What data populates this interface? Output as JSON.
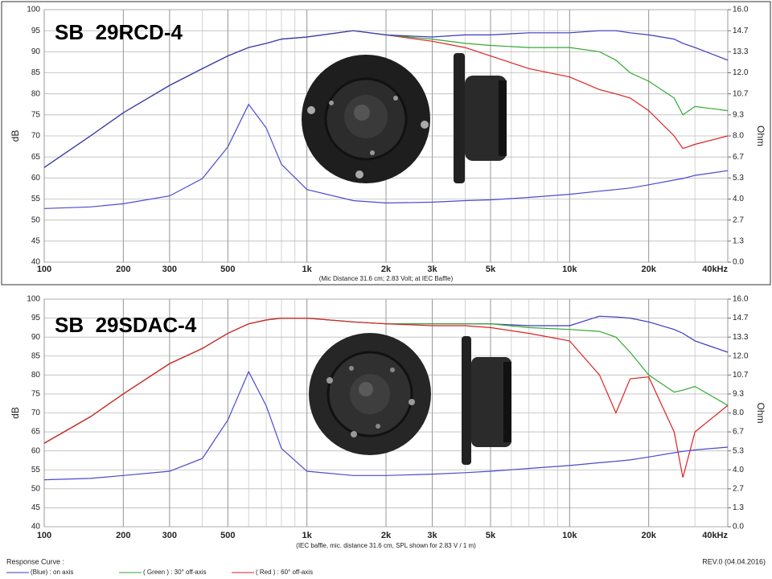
{
  "chart_data": [
    {
      "type": "line",
      "title": "SB  29RCD-4",
      "xlabel": "(Mic Distance 31.6 cm; 2.83 Volt; at IEC Baffle)",
      "ylabel": "dB",
      "y2label": "Ohm",
      "xscale": "log",
      "grid": true,
      "x": [
        100,
        150,
        200,
        300,
        400,
        500,
        600,
        700,
        800,
        1000,
        1500,
        2000,
        3000,
        4000,
        5000,
        7000,
        10000,
        13000,
        15000,
        17000,
        20000,
        25000,
        27000,
        30000,
        40000
      ],
      "xlim": [
        100,
        40000
      ],
      "xticks": [
        100,
        200,
        300,
        500,
        {
          "value": 1000,
          "label": "1k"
        },
        {
          "value": 2000,
          "label": "2k"
        },
        {
          "value": 3000,
          "label": "3k"
        },
        {
          "value": 5000,
          "label": "5k"
        },
        {
          "value": 10000,
          "label": "10k"
        },
        {
          "value": 20000,
          "label": "20k"
        },
        {
          "value": 40000,
          "label": "40kHz"
        }
      ],
      "ylim": [
        40,
        100
      ],
      "yticks": [
        40,
        45,
        50,
        55,
        60,
        65,
        70,
        75,
        80,
        85,
        90,
        95,
        100
      ],
      "y2lim": [
        0,
        16
      ],
      "y2ticks": [
        {
          "value": 0,
          "label": "0.0"
        },
        {
          "value": 1.333,
          "label": "1.3"
        },
        {
          "value": 2.667,
          "label": "2.7"
        },
        {
          "value": 4,
          "label": "4.0"
        },
        {
          "value": 5.333,
          "label": "5.3"
        },
        {
          "value": 6.667,
          "label": "6.7"
        },
        {
          "value": 8,
          "label": "8.0"
        },
        {
          "value": 9.333,
          "label": "9.3"
        },
        {
          "value": 10.667,
          "label": "10.7"
        },
        {
          "value": 12,
          "label": "12.0"
        },
        {
          "value": 13.333,
          "label": "13.3"
        },
        {
          "value": 14.667,
          "label": "14.7"
        },
        {
          "value": 16,
          "label": "16.0"
        }
      ],
      "series": [
        {
          "color": "#dd2222",
          "values": [
            62.5,
            70,
            75.5,
            82,
            86,
            89,
            91,
            92,
            93,
            93.5,
            95,
            94,
            92.5,
            91,
            89,
            86,
            84,
            81,
            80,
            79,
            76,
            70,
            67,
            68,
            70
          ]
        },
        {
          "color": "#33aa33",
          "values": [
            62.5,
            70,
            75.5,
            82,
            86,
            89,
            91,
            92,
            93,
            93.5,
            95,
            94,
            93,
            92,
            91.5,
            91,
            91,
            90,
            88,
            85,
            83,
            79,
            75,
            77,
            76
          ]
        },
        {
          "color": "#3a3ac0",
          "values": [
            62.5,
            70,
            75.5,
            82,
            86,
            89,
            91,
            92,
            93,
            93.5,
            95,
            94,
            93.5,
            94,
            94,
            94.5,
            94.5,
            95,
            95,
            94.5,
            94,
            93,
            92,
            91,
            88
          ]
        },
        {
          "color": "#4a4ad0",
          "axis": "y2",
          "values": [
            3.4,
            3.5,
            3.7,
            4.2,
            5.3,
            7.3,
            10.0,
            8.5,
            6.2,
            4.6,
            3.9,
            3.75,
            3.8,
            3.9,
            3.95,
            4.1,
            4.3,
            4.5,
            4.6,
            4.7,
            4.9,
            5.2,
            5.3,
            5.5,
            5.8
          ]
        }
      ]
    },
    {
      "type": "line",
      "title": "SB  29SDAC-4",
      "xlabel": "(IEC baffle, mic. distance 31.6 cm, SPL shown for 2.83 V / 1 m)",
      "ylabel": "dB",
      "y2label": "Ohm",
      "xscale": "log",
      "grid": true,
      "x": [
        100,
        150,
        200,
        300,
        400,
        500,
        600,
        700,
        800,
        1000,
        1500,
        2000,
        3000,
        4000,
        5000,
        7000,
        10000,
        13000,
        15000,
        17000,
        20000,
        25000,
        27000,
        30000,
        40000
      ],
      "xlim": [
        100,
        40000
      ],
      "xticks": [
        100,
        200,
        300,
        500,
        {
          "value": 1000,
          "label": "1k"
        },
        {
          "value": 2000,
          "label": "2k"
        },
        {
          "value": 3000,
          "label": "3k"
        },
        {
          "value": 5000,
          "label": "5k"
        },
        {
          "value": 10000,
          "label": "10k"
        },
        {
          "value": 20000,
          "label": "20k"
        },
        {
          "value": 40000,
          "label": "40kHz"
        }
      ],
      "ylim": [
        40,
        100
      ],
      "yticks": [
        40,
        45,
        50,
        55,
        60,
        65,
        70,
        75,
        80,
        85,
        90,
        95,
        100
      ],
      "y2lim": [
        0,
        16
      ],
      "y2ticks": [
        {
          "value": 0,
          "label": "0.0"
        },
        {
          "value": 1.333,
          "label": "1.3"
        },
        {
          "value": 2.667,
          "label": "2.7"
        },
        {
          "value": 4,
          "label": "4.0"
        },
        {
          "value": 5.333,
          "label": "5.3"
        },
        {
          "value": 6.667,
          "label": "6.7"
        },
        {
          "value": 8,
          "label": "8.0"
        },
        {
          "value": 9.333,
          "label": "9.3"
        },
        {
          "value": 10.667,
          "label": "10.7"
        },
        {
          "value": 12,
          "label": "12.0"
        },
        {
          "value": 13.333,
          "label": "13.3"
        },
        {
          "value": 14.667,
          "label": "14.7"
        },
        {
          "value": 16,
          "label": "16.0"
        }
      ],
      "legend_title": "Response Curve :",
      "note": "REV.0 (04.04.2016)",
      "series": [
        {
          "name": "(Blue) : on axis",
          "color": "#3a3ac0",
          "values": [
            62,
            69,
            75,
            83,
            87,
            91,
            93.5,
            94.5,
            95,
            95,
            94,
            93.5,
            93.5,
            93.5,
            93.5,
            93,
            93,
            95.5,
            95.3,
            95,
            94,
            92,
            91,
            89,
            86
          ]
        },
        {
          "name": "( Green ) : 30° off-axis",
          "color": "#33aa33",
          "values": [
            62,
            69,
            75,
            83,
            87,
            91,
            93.5,
            94.5,
            95,
            95,
            94,
            93.5,
            93.5,
            93.5,
            93.5,
            92.5,
            92,
            91.5,
            90,
            86,
            80,
            75.5,
            76,
            77,
            72
          ]
        },
        {
          "name": "( Red ) : 60° off-axis",
          "color": "#dd2222",
          "values": [
            62,
            69,
            75,
            83,
            87,
            91,
            93.5,
            94.5,
            95,
            95,
            94,
            93.5,
            93,
            93,
            92.5,
            91,
            89,
            80,
            70,
            79,
            79.5,
            65,
            53,
            65,
            72
          ]
        },
        {
          "color": "#4a4ad0",
          "axis": "y2",
          "values": [
            3.3,
            3.4,
            3.6,
            3.9,
            4.8,
            7.5,
            10.9,
            8.5,
            5.5,
            3.9,
            3.6,
            3.6,
            3.7,
            3.8,
            3.9,
            4.1,
            4.3,
            4.5,
            4.6,
            4.7,
            4.9,
            5.2,
            5.3,
            5.4,
            5.6
          ]
        }
      ]
    }
  ]
}
